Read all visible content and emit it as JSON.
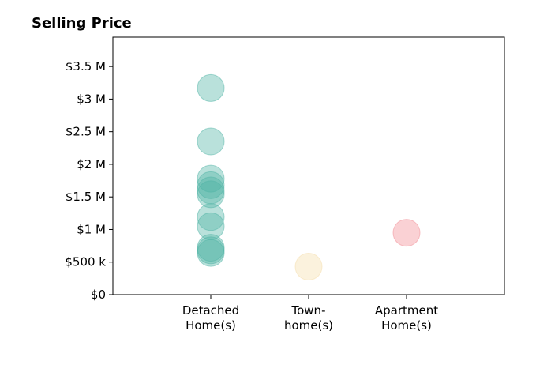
{
  "chart_data": {
    "type": "scatter",
    "title": "Selling Price",
    "xlabel": "",
    "ylabel": "",
    "categories": [
      [
        "Detached",
        "Home(s)"
      ],
      [
        "Town-",
        "home(s)"
      ],
      [
        "Apartment",
        "Home(s)"
      ]
    ],
    "ylim": [
      0,
      3950000
    ],
    "yticks": [
      {
        "value": 0,
        "label": "$0"
      },
      {
        "value": 500000,
        "label": "$500 k"
      },
      {
        "value": 1000000,
        "label": "$1 M"
      },
      {
        "value": 1500000,
        "label": "$1.5 M"
      },
      {
        "value": 2000000,
        "label": "$2 M"
      },
      {
        "value": 2500000,
        "label": "$2.5 M"
      },
      {
        "value": 3000000,
        "label": "$3 M"
      },
      {
        "value": 3500000,
        "label": "$3.5 M"
      }
    ],
    "grid": false,
    "legend": "none",
    "series": [
      {
        "category": 0,
        "color": "#50b4a6",
        "values": [
          3170000,
          2350000,
          1780000,
          1680000,
          1600000,
          1540000,
          1190000,
          1050000,
          720000,
          680000,
          640000
        ]
      },
      {
        "category": 1,
        "color": "#f5deab",
        "values": [
          430000
        ]
      },
      {
        "category": 2,
        "color": "#f28c94",
        "values": [
          950000
        ]
      }
    ]
  }
}
